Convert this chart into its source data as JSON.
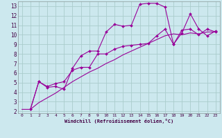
{
  "xlabel": "Windchill (Refroidissement éolien,°C)",
  "bg_color": "#cce8ee",
  "grid_color": "#aacccc",
  "line_color": "#990099",
  "xlim": [
    -0.5,
    23.5
  ],
  "ylim": [
    1.8,
    13.5
  ],
  "xticks": [
    0,
    1,
    2,
    3,
    4,
    5,
    6,
    7,
    8,
    9,
    10,
    11,
    12,
    13,
    14,
    15,
    16,
    17,
    18,
    19,
    20,
    21,
    22,
    23
  ],
  "yticks": [
    2,
    3,
    4,
    5,
    6,
    7,
    8,
    9,
    10,
    11,
    12,
    13
  ],
  "series": [
    {
      "x": [
        0,
        1,
        2,
        3,
        4,
        5,
        6,
        7,
        8,
        9,
        10,
        11,
        12,
        13,
        14,
        15,
        16,
        17,
        18,
        19,
        20,
        21,
        22,
        23
      ],
      "y": [
        2.2,
        2.2,
        2.9,
        3.4,
        3.9,
        4.5,
        5.1,
        5.6,
        6.1,
        6.5,
        7.0,
        7.4,
        7.9,
        8.3,
        8.7,
        9.1,
        9.5,
        9.9,
        10.1,
        10.0,
        10.2,
        10.1,
        10.3,
        10.3
      ],
      "marker": false
    },
    {
      "x": [
        1,
        2,
        3,
        4,
        5,
        6,
        7,
        8,
        9,
        10,
        11,
        12,
        13,
        14,
        15,
        16,
        17,
        18,
        19,
        20,
        21,
        22,
        23
      ],
      "y": [
        2.2,
        5.1,
        4.5,
        4.6,
        4.3,
        6.5,
        7.8,
        8.3,
        8.3,
        10.3,
        11.1,
        10.9,
        11.0,
        13.2,
        13.3,
        13.3,
        12.9,
        9.0,
        10.5,
        10.6,
        10.0,
        10.6,
        10.3
      ],
      "marker": true
    },
    {
      "x": [
        1,
        2,
        3,
        4,
        5,
        6,
        7,
        8,
        9,
        10,
        11,
        12,
        13,
        14,
        15,
        16,
        17,
        18,
        19,
        20,
        21,
        22,
        23
      ],
      "y": [
        2.2,
        5.1,
        4.6,
        4.9,
        5.1,
        6.3,
        6.6,
        6.6,
        8.0,
        8.0,
        8.5,
        8.8,
        8.9,
        9.0,
        9.1,
        9.9,
        10.6,
        9.0,
        10.2,
        12.2,
        10.6,
        9.9,
        10.4
      ],
      "marker": true
    }
  ]
}
